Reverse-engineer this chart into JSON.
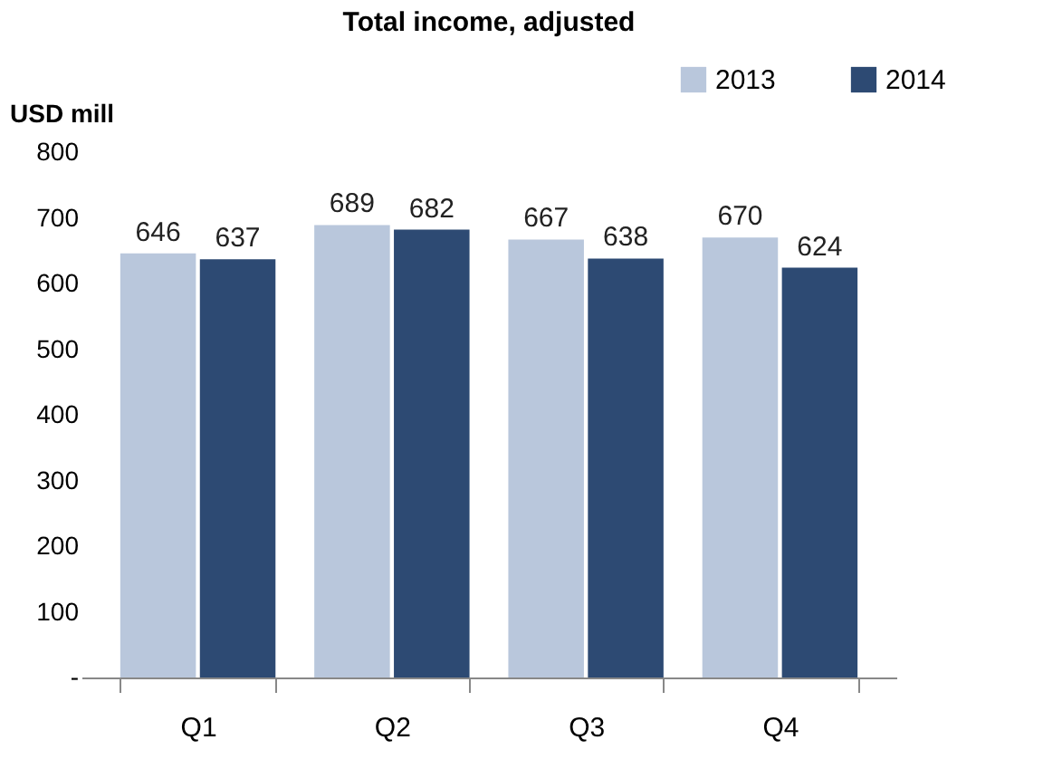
{
  "chart_data": {
    "type": "bar",
    "title": "Total income, adjusted",
    "ylabel": "USD mill",
    "categories": [
      "Q1",
      "Q2",
      "Q3",
      "Q4"
    ],
    "series": [
      {
        "name": "2013",
        "color": "#b9c7dc",
        "values": [
          646,
          689,
          667,
          670
        ]
      },
      {
        "name": "2014",
        "color": "#2d4a73",
        "values": [
          637,
          682,
          638,
          624
        ]
      }
    ],
    "ylim": [
      0,
      800
    ],
    "yticks": [
      {
        "value": 0,
        "label": "-"
      },
      100,
      200,
      300,
      400,
      500,
      600,
      700,
      800
    ],
    "data_labels": true,
    "grid": false,
    "legend": "top right"
  }
}
